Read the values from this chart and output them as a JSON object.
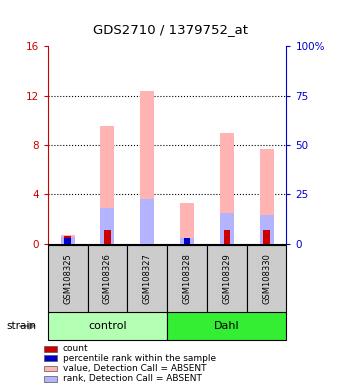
{
  "title": "GDS2710 / 1379752_at",
  "samples": [
    "GSM108325",
    "GSM108326",
    "GSM108327",
    "GSM108328",
    "GSM108329",
    "GSM108330"
  ],
  "groups": [
    {
      "name": "control",
      "indices": [
        0,
        1,
        2
      ],
      "color": "#b3ffb3"
    },
    {
      "name": "Dahl",
      "indices": [
        3,
        4,
        5
      ],
      "color": "#33ee33"
    }
  ],
  "ylim_left": [
    0,
    16
  ],
  "ylim_right": [
    0,
    100
  ],
  "yticks_left": [
    0,
    4,
    8,
    12,
    16
  ],
  "ytick_labels_left": [
    "0",
    "4",
    "8",
    "12",
    "16"
  ],
  "ytick_labels_right": [
    "0",
    "25",
    "50",
    "75",
    "100%"
  ],
  "pink_bar_heights": [
    0.7,
    9.5,
    12.4,
    3.3,
    9.0,
    7.7
  ],
  "blue_bar_heights": [
    0.55,
    2.9,
    3.6,
    0.5,
    2.5,
    2.3
  ],
  "red_bar_heights": [
    0.65,
    1.1,
    0.0,
    0.0,
    1.1,
    1.1
  ],
  "dark_blue_bar_heights": [
    0.5,
    0.0,
    0.0,
    0.45,
    0.0,
    0.0
  ],
  "bar_width": 0.35,
  "pink_color": "#ffb3b3",
  "light_blue_color": "#b3b3ff",
  "red_color": "#cc0000",
  "dark_blue_color": "#0000cc",
  "left_axis_color": "#cc0000",
  "right_axis_color": "#0000cc",
  "sample_box_color": "#cccccc",
  "strain_label": "strain",
  "legend_items": [
    {
      "color": "#cc0000",
      "label": "count"
    },
    {
      "color": "#0000cc",
      "label": "percentile rank within the sample"
    },
    {
      "color": "#ffb3b3",
      "label": "value, Detection Call = ABSENT"
    },
    {
      "color": "#b3b3ff",
      "label": "rank, Detection Call = ABSENT"
    }
  ]
}
